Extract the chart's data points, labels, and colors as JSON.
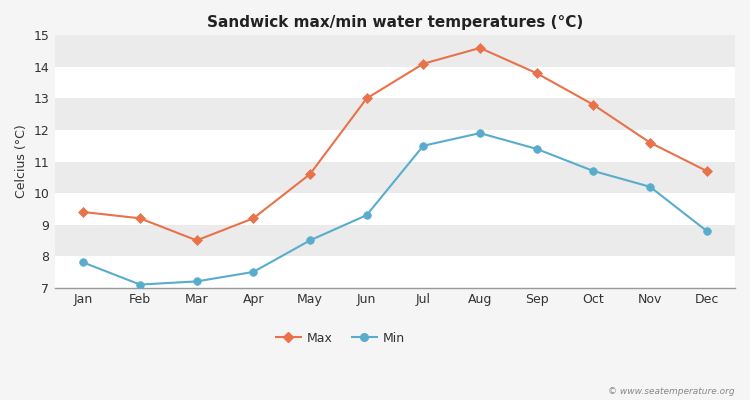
{
  "months": [
    "Jan",
    "Feb",
    "Mar",
    "Apr",
    "May",
    "Jun",
    "Jul",
    "Aug",
    "Sep",
    "Oct",
    "Nov",
    "Dec"
  ],
  "max_temps": [
    9.4,
    9.2,
    8.5,
    9.2,
    10.6,
    13.0,
    14.1,
    14.6,
    13.8,
    12.8,
    11.6,
    10.7
  ],
  "min_temps": [
    7.8,
    7.1,
    7.2,
    7.5,
    8.5,
    9.3,
    11.5,
    11.9,
    11.4,
    10.7,
    10.2,
    8.8
  ],
  "max_color": "#e8724a",
  "min_color": "#5aaccc",
  "title": "Sandwick max/min water temperatures (°C)",
  "ylabel": "Celcius (°C)",
  "ylim": [
    7,
    15
  ],
  "yticks": [
    7,
    8,
    9,
    10,
    11,
    12,
    13,
    14,
    15
  ],
  "bg_color": "#f5f5f5",
  "plot_bg_color_light": "#ebebeb",
  "plot_bg_color_dark": "#e0e0e0",
  "grid_color": "#ffffff",
  "watermark": "© www.seatemperature.org"
}
